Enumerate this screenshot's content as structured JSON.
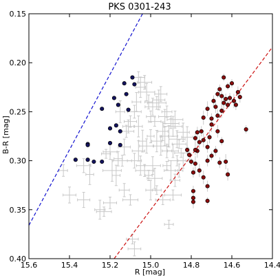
{
  "chart_data": {
    "type": "scatter",
    "title": "PKS 0301-243",
    "xlabel": "R [mag]",
    "ylabel": "B-R [mag]",
    "xlim": [
      15.6,
      14.4
    ],
    "ylim": [
      0.15,
      0.4
    ],
    "x_inverted": true,
    "y_inverted": true,
    "grid": false,
    "xticks": [
      "15.6",
      "15.4",
      "15.2",
      "15.0",
      "14.8",
      "14.6",
      "14.4"
    ],
    "yticks": [
      "0.15",
      "0.20",
      "0.25",
      "0.30",
      "0.35",
      "0.40"
    ],
    "colors": {
      "blue_points": "#14145f",
      "red_points": "#8b0d0d",
      "gray_points": "#c8c8c8",
      "blue_line": "#1010d0",
      "red_line": "#cc1010"
    },
    "reference_lines": [
      {
        "color": "blue",
        "style": "dashed",
        "x": [
          15.6,
          15.04
        ],
        "y": [
          0.366,
          0.15
        ]
      },
      {
        "color": "red",
        "style": "dashed",
        "x": [
          15.18,
          14.4
        ],
        "y": [
          0.4,
          0.184
        ]
      }
    ],
    "series": [
      {
        "color": "blue",
        "points": [
          [
            15.37,
            0.299
          ],
          [
            15.31,
            0.283
          ],
          [
            15.31,
            0.284
          ],
          [
            15.31,
            0.299
          ],
          [
            15.28,
            0.301
          ],
          [
            15.24,
            0.301
          ],
          [
            15.24,
            0.247
          ],
          [
            15.2,
            0.267
          ],
          [
            15.18,
            0.236
          ],
          [
            15.16,
            0.243
          ],
          [
            15.17,
            0.264
          ],
          [
            15.15,
            0.27
          ],
          [
            15.15,
            0.284
          ],
          [
            15.13,
            0.221
          ],
          [
            15.12,
            0.232
          ],
          [
            15.11,
            0.248
          ],
          [
            15.09,
            0.215
          ],
          [
            15.08,
            0.222
          ],
          [
            15.2,
            0.282
          ]
        ]
      },
      {
        "color": "red",
        "points": [
          [
            14.64,
            0.215
          ],
          [
            14.62,
            0.224
          ],
          [
            14.6,
            0.221
          ],
          [
            14.66,
            0.227
          ],
          [
            14.67,
            0.232
          ],
          [
            14.65,
            0.234
          ],
          [
            14.63,
            0.237
          ],
          [
            14.61,
            0.236
          ],
          [
            14.57,
            0.23
          ],
          [
            14.59,
            0.239
          ],
          [
            14.56,
            0.235
          ],
          [
            14.58,
            0.243
          ],
          [
            14.62,
            0.243
          ],
          [
            14.64,
            0.241
          ],
          [
            14.68,
            0.245
          ],
          [
            14.69,
            0.239
          ],
          [
            14.65,
            0.249
          ],
          [
            14.67,
            0.254
          ],
          [
            14.7,
            0.257
          ],
          [
            14.72,
            0.247
          ],
          [
            14.74,
            0.256
          ],
          [
            14.75,
            0.27
          ],
          [
            14.77,
            0.271
          ],
          [
            14.76,
            0.281
          ],
          [
            14.78,
            0.277
          ],
          [
            14.74,
            0.279
          ],
          [
            14.72,
            0.286
          ],
          [
            14.7,
            0.263
          ],
          [
            14.71,
            0.276
          ],
          [
            14.77,
            0.29
          ],
          [
            14.78,
            0.289
          ],
          [
            14.8,
            0.301
          ],
          [
            14.78,
            0.303
          ],
          [
            14.82,
            0.289
          ],
          [
            14.81,
            0.294
          ],
          [
            14.79,
            0.312
          ],
          [
            14.76,
            0.31
          ],
          [
            14.74,
            0.317
          ],
          [
            14.72,
            0.326
          ],
          [
            14.79,
            0.331
          ],
          [
            14.79,
            0.338
          ],
          [
            14.79,
            0.342
          ],
          [
            14.72,
            0.341
          ],
          [
            14.68,
            0.29
          ],
          [
            14.66,
            0.302
          ],
          [
            14.63,
            0.301
          ],
          [
            14.62,
            0.314
          ],
          [
            14.53,
            0.268
          ],
          [
            14.67,
            0.27
          ],
          [
            14.65,
            0.28
          ],
          [
            14.7,
            0.295
          ],
          [
            14.72,
            0.3
          ]
        ]
      },
      {
        "color": "gray",
        "points": [
          [
            15.4,
            0.335
          ],
          [
            15.43,
            0.31
          ],
          [
            15.33,
            0.34
          ],
          [
            15.3,
            0.314
          ],
          [
            15.33,
            0.305
          ],
          [
            15.25,
            0.35
          ],
          [
            15.23,
            0.352
          ],
          [
            15.2,
            0.343
          ],
          [
            15.1,
            0.34
          ],
          [
            15.2,
            0.291
          ],
          [
            15.22,
            0.293
          ],
          [
            15.19,
            0.31
          ],
          [
            15.16,
            0.298
          ],
          [
            15.14,
            0.3
          ],
          [
            15.13,
            0.286
          ],
          [
            15.12,
            0.27
          ],
          [
            15.15,
            0.25
          ],
          [
            15.1,
            0.26
          ],
          [
            15.08,
            0.25
          ],
          [
            15.07,
            0.24
          ],
          [
            15.11,
            0.265
          ],
          [
            15.06,
            0.265
          ],
          [
            15.05,
            0.225
          ],
          [
            15.06,
            0.215
          ],
          [
            15.03,
            0.22
          ],
          [
            15.02,
            0.23
          ],
          [
            15.0,
            0.255
          ],
          [
            14.98,
            0.26
          ],
          [
            15.01,
            0.24
          ],
          [
            14.99,
            0.245
          ],
          [
            14.97,
            0.241
          ],
          [
            14.95,
            0.232
          ],
          [
            14.96,
            0.238
          ],
          [
            14.93,
            0.255
          ],
          [
            14.92,
            0.25
          ],
          [
            14.9,
            0.262
          ],
          [
            14.94,
            0.27
          ],
          [
            14.91,
            0.275
          ],
          [
            14.89,
            0.265
          ],
          [
            14.87,
            0.278
          ],
          [
            14.86,
            0.283
          ],
          [
            14.89,
            0.29
          ],
          [
            14.92,
            0.29
          ],
          [
            14.95,
            0.285
          ],
          [
            14.97,
            0.28
          ],
          [
            15.0,
            0.275
          ],
          [
            15.02,
            0.285
          ],
          [
            15.04,
            0.28
          ],
          [
            15.06,
            0.29
          ],
          [
            15.08,
            0.3
          ],
          [
            15.05,
            0.305
          ],
          [
            15.03,
            0.31
          ],
          [
            15.01,
            0.315
          ],
          [
            14.99,
            0.305
          ],
          [
            14.98,
            0.318
          ],
          [
            15.0,
            0.33
          ],
          [
            14.97,
            0.33
          ],
          [
            14.92,
            0.305
          ],
          [
            14.9,
            0.31
          ],
          [
            14.87,
            0.3
          ],
          [
            14.85,
            0.292
          ],
          [
            14.84,
            0.3
          ],
          [
            14.86,
            0.31
          ],
          [
            14.88,
            0.32
          ],
          [
            14.89,
            0.335
          ],
          [
            14.91,
            0.365
          ],
          [
            14.94,
            0.34
          ],
          [
            15.09,
            0.38
          ],
          [
            15.08,
            0.39
          ],
          [
            14.93,
            0.275
          ],
          [
            14.84,
            0.271
          ],
          [
            14.82,
            0.276
          ],
          [
            14.88,
            0.258
          ],
          [
            15.13,
            0.33
          ],
          [
            15.17,
            0.315
          ]
        ]
      }
    ]
  }
}
